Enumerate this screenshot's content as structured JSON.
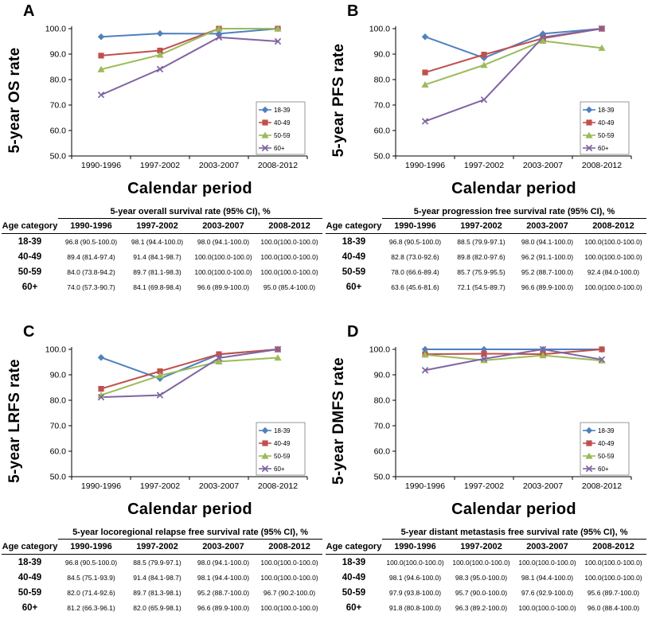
{
  "chart_data": [
    {
      "type": "line",
      "panel": "A",
      "ylabel": "5-year OS rate",
      "xlabel": "Calendar period",
      "categories": [
        "1990-1996",
        "1997-2002",
        "2003-2007",
        "2008-2012"
      ],
      "ylim": [
        50,
        100
      ],
      "y_ticks": [
        50,
        60,
        70,
        80,
        90,
        100
      ],
      "grid": false,
      "legend_position": "lower-right",
      "series": [
        {
          "name": "18-39",
          "color": "#4F81BD",
          "marker": "diamond",
          "values": [
            96.8,
            98.1,
            98.0,
            100.0
          ]
        },
        {
          "name": "40-49",
          "color": "#C0504D",
          "marker": "square",
          "values": [
            89.4,
            91.4,
            100.0,
            100.0
          ]
        },
        {
          "name": "50-59",
          "color": "#9BBB59",
          "marker": "triangle",
          "values": [
            84.0,
            89.7,
            100.0,
            100.0
          ]
        },
        {
          "name": "60+",
          "color": "#8064A2",
          "marker": "x",
          "values": [
            74.0,
            84.1,
            96.6,
            95.0
          ]
        }
      ],
      "table": {
        "title": "5-year overall survival rate (95% CI), %",
        "columns": [
          "Age category",
          "1990-1996",
          "1997-2002",
          "2003-2007",
          "2008-2012"
        ],
        "rows": [
          [
            "18-39",
            "96.8 (90.5-100.0)",
            "98.1 (94.4-100.0)",
            "98.0 (94.1-100.0)",
            "100.0(100.0-100.0)"
          ],
          [
            "40-49",
            "89.4 (81.4-97.4)",
            "91.4 (84.1-98.7)",
            "100.0(100.0-100.0)",
            "100.0(100.0-100.0)"
          ],
          [
            "50-59",
            "84.0 (73.8-94.2)",
            "89.7 (81.1-98.3)",
            "100.0(100.0-100.0)",
            "100.0(100.0-100.0)"
          ],
          [
            "60+",
            "74.0 (57.3-90.7)",
            "84.1 (69.8-98.4)",
            "96.6 (89.9-100.0)",
            "95.0 (85.4-100.0)"
          ]
        ]
      }
    },
    {
      "type": "line",
      "panel": "B",
      "ylabel": "5-year PFS rate",
      "xlabel": "Calendar period",
      "categories": [
        "1990-1996",
        "1997-2002",
        "2003-2007",
        "2008-2012"
      ],
      "ylim": [
        50,
        100
      ],
      "y_ticks": [
        50,
        60,
        70,
        80,
        90,
        100
      ],
      "grid": false,
      "legend_position": "lower-right",
      "series": [
        {
          "name": "18-39",
          "color": "#4F81BD",
          "marker": "diamond",
          "values": [
            96.8,
            88.5,
            98.0,
            100.0
          ]
        },
        {
          "name": "40-49",
          "color": "#C0504D",
          "marker": "square",
          "values": [
            82.8,
            89.8,
            96.2,
            100.0
          ]
        },
        {
          "name": "50-59",
          "color": "#9BBB59",
          "marker": "triangle",
          "values": [
            78.0,
            85.7,
            95.2,
            92.4
          ]
        },
        {
          "name": "60+",
          "color": "#8064A2",
          "marker": "x",
          "values": [
            63.6,
            72.1,
            96.6,
            100.0
          ]
        }
      ],
      "table": {
        "title": "5-year progression free survival rate (95% CI), %",
        "columns": [
          "Age category",
          "1990-1996",
          "1997-2002",
          "2003-2007",
          "2008-2012"
        ],
        "rows": [
          [
            "18-39",
            "96.8 (90.5-100.0)",
            "88.5 (79.9-97.1)",
            "98.0 (94.1-100.0)",
            "100.0(100.0-100.0)"
          ],
          [
            "40-49",
            "82.8 (73.0-92.6)",
            "89.8 (82.0-97.6)",
            "96.2 (91.1-100.0)",
            "100.0(100.0-100.0)"
          ],
          [
            "50-59",
            "78.0 (66.6-89.4)",
            "85.7 (75.9-95.5)",
            "95.2 (88.7-100.0)",
            "92.4 (84.0-100.0)"
          ],
          [
            "60+",
            "63.6 (45.6-81.6)",
            "72.1 (54.5-89.7)",
            "96.6 (89.9-100.0)",
            "100.0(100.0-100.0)"
          ]
        ]
      }
    },
    {
      "type": "line",
      "panel": "C",
      "ylabel": "5-year LRFS rate",
      "xlabel": "Calendar period",
      "categories": [
        "1990-1996",
        "1997-2002",
        "2003-2007",
        "2008-2012"
      ],
      "ylim": [
        50,
        100
      ],
      "y_ticks": [
        50,
        60,
        70,
        80,
        90,
        100
      ],
      "grid": false,
      "legend_position": "lower-right",
      "series": [
        {
          "name": "18-39",
          "color": "#4F81BD",
          "marker": "diamond",
          "values": [
            96.8,
            88.5,
            98.0,
            100.0
          ]
        },
        {
          "name": "40-49",
          "color": "#C0504D",
          "marker": "square",
          "values": [
            84.5,
            91.4,
            98.1,
            100.0
          ]
        },
        {
          "name": "50-59",
          "color": "#9BBB59",
          "marker": "triangle",
          "values": [
            82.0,
            89.7,
            95.2,
            96.7
          ]
        },
        {
          "name": "60+",
          "color": "#8064A2",
          "marker": "x",
          "values": [
            81.2,
            82.0,
            96.6,
            100.0
          ]
        }
      ],
      "table": {
        "title": "5-year locoregional relapse free survival rate (95% CI), %",
        "columns": [
          "Age category",
          "1990-1996",
          "1997-2002",
          "2003-2007",
          "2008-2012"
        ],
        "rows": [
          [
            "18-39",
            "96.8 (90.5-100.0)",
            "88.5 (79.9-97.1)",
            "98.0 (94.1-100.0)",
            "100.0(100.0-100.0)"
          ],
          [
            "40-49",
            "84.5 (75.1-93.9)",
            "91.4 (84.1-98.7)",
            "98.1 (94.4-100.0)",
            "100.0(100.0-100.0)"
          ],
          [
            "50-59",
            "82.0 (71.4-92.6)",
            "89.7 (81.3-98.1)",
            "95.2 (88.7-100.0)",
            "96.7 (90.2-100.0)"
          ],
          [
            "60+",
            "81.2 (66.3-96.1)",
            "82.0 (65.9-98.1)",
            "96.6 (89.9-100.0)",
            "100.0(100.0-100.0)"
          ]
        ]
      }
    },
    {
      "type": "line",
      "panel": "D",
      "ylabel": "5-year DMFS rate",
      "xlabel": "Calendar period",
      "categories": [
        "1990-1996",
        "1997-2002",
        "2003-2007",
        "2008-2012"
      ],
      "ylim": [
        50,
        100
      ],
      "y_ticks": [
        50,
        60,
        70,
        80,
        90,
        100
      ],
      "grid": false,
      "legend_position": "lower-right",
      "series": [
        {
          "name": "18-39",
          "color": "#4F81BD",
          "marker": "diamond",
          "values": [
            100.0,
            100.0,
            100.0,
            100.0
          ]
        },
        {
          "name": "40-49",
          "color": "#C0504D",
          "marker": "square",
          "values": [
            98.1,
            98.3,
            98.1,
            100.0
          ]
        },
        {
          "name": "50-59",
          "color": "#9BBB59",
          "marker": "triangle",
          "values": [
            97.9,
            95.7,
            97.6,
            95.6
          ]
        },
        {
          "name": "60+",
          "color": "#8064A2",
          "marker": "x",
          "values": [
            91.8,
            96.3,
            100.0,
            96.0
          ]
        }
      ],
      "table": {
        "title": "5-year distant metastasis free survival rate (95% CI), %",
        "columns": [
          "Age category",
          "1990-1996",
          "1997-2002",
          "2003-2007",
          "2008-2012"
        ],
        "rows": [
          [
            "18-39",
            "100.0(100.0-100.0)",
            "100.0(100.0-100.0)",
            "100.0(100.0-100.0)",
            "100.0(100.0-100.0)"
          ],
          [
            "40-49",
            "98.1 (94.6-100.0)",
            "98.3 (95.0-100.0)",
            "98.1 (94.4-100.0)",
            "100.0(100.0-100.0)"
          ],
          [
            "50-59",
            "97.9 (93.8-100.0)",
            "95.7 (90.0-100.0)",
            "97.6 (92.9-100.0)",
            "95.6 (89.7-100.0)"
          ],
          [
            "60+",
            "91.8 (80.8-100.0)",
            "96.3 (89.2-100.0)",
            "100.0(100.0-100.0)",
            "96.0 (88.4-100.0)"
          ]
        ]
      }
    }
  ]
}
